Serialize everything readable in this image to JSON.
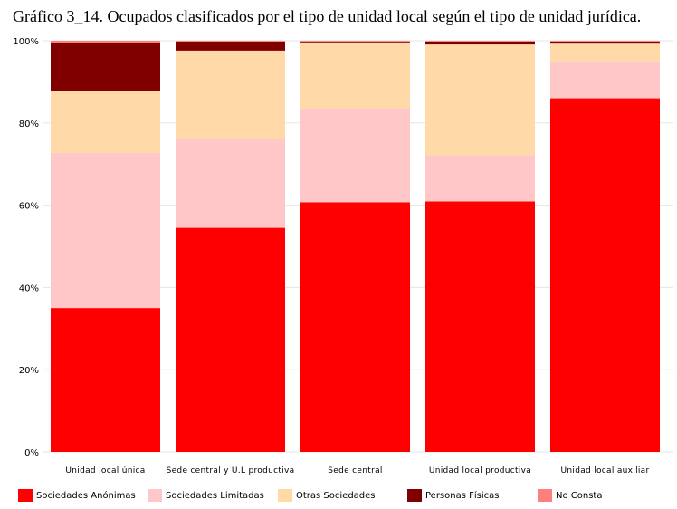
{
  "title": "Gráfico 3_14. Ocupados clasificados por el tipo de unidad local según el tipo de unidad jurídica.",
  "chart_data": {
    "type": "bar",
    "stacked": true,
    "title": "Gráfico 3_14. Ocupados clasificados por el tipo de unidad local según el tipo de unidad jurídica.",
    "categories": [
      "Unidad local única",
      "Sede central y U.L productiva",
      "Sede central",
      "Unidad local productiva",
      "Unidad local auxiliar"
    ],
    "ylim": [
      0,
      100
    ],
    "yticks": [
      "0%",
      "20%",
      "40%",
      "60%",
      "80%",
      "100%"
    ],
    "grid": true,
    "legend_position": "bottom",
    "series": [
      {
        "name": "Sociedades Anónimas",
        "color": "#ff0000",
        "values": [
          35.0,
          54.5,
          60.7,
          60.9,
          86.0
        ]
      },
      {
        "name": "Sociedades Limitadas",
        "color": "#ffc7c7",
        "values": [
          37.7,
          21.5,
          22.8,
          11.3,
          9.0
        ]
      },
      {
        "name": "Otras Sociedades",
        "color": "#ffd9a8",
        "values": [
          15.0,
          21.6,
          16.1,
          26.9,
          4.3
        ]
      },
      {
        "name": "Personas Físicas",
        "color": "#800000",
        "values": [
          11.8,
          2.2,
          0.2,
          0.7,
          0.5
        ]
      },
      {
        "name": "No Consta",
        "color": "#ff7f7f",
        "values": [
          0.5,
          0.2,
          0.2,
          0.2,
          0.2
        ]
      }
    ]
  }
}
